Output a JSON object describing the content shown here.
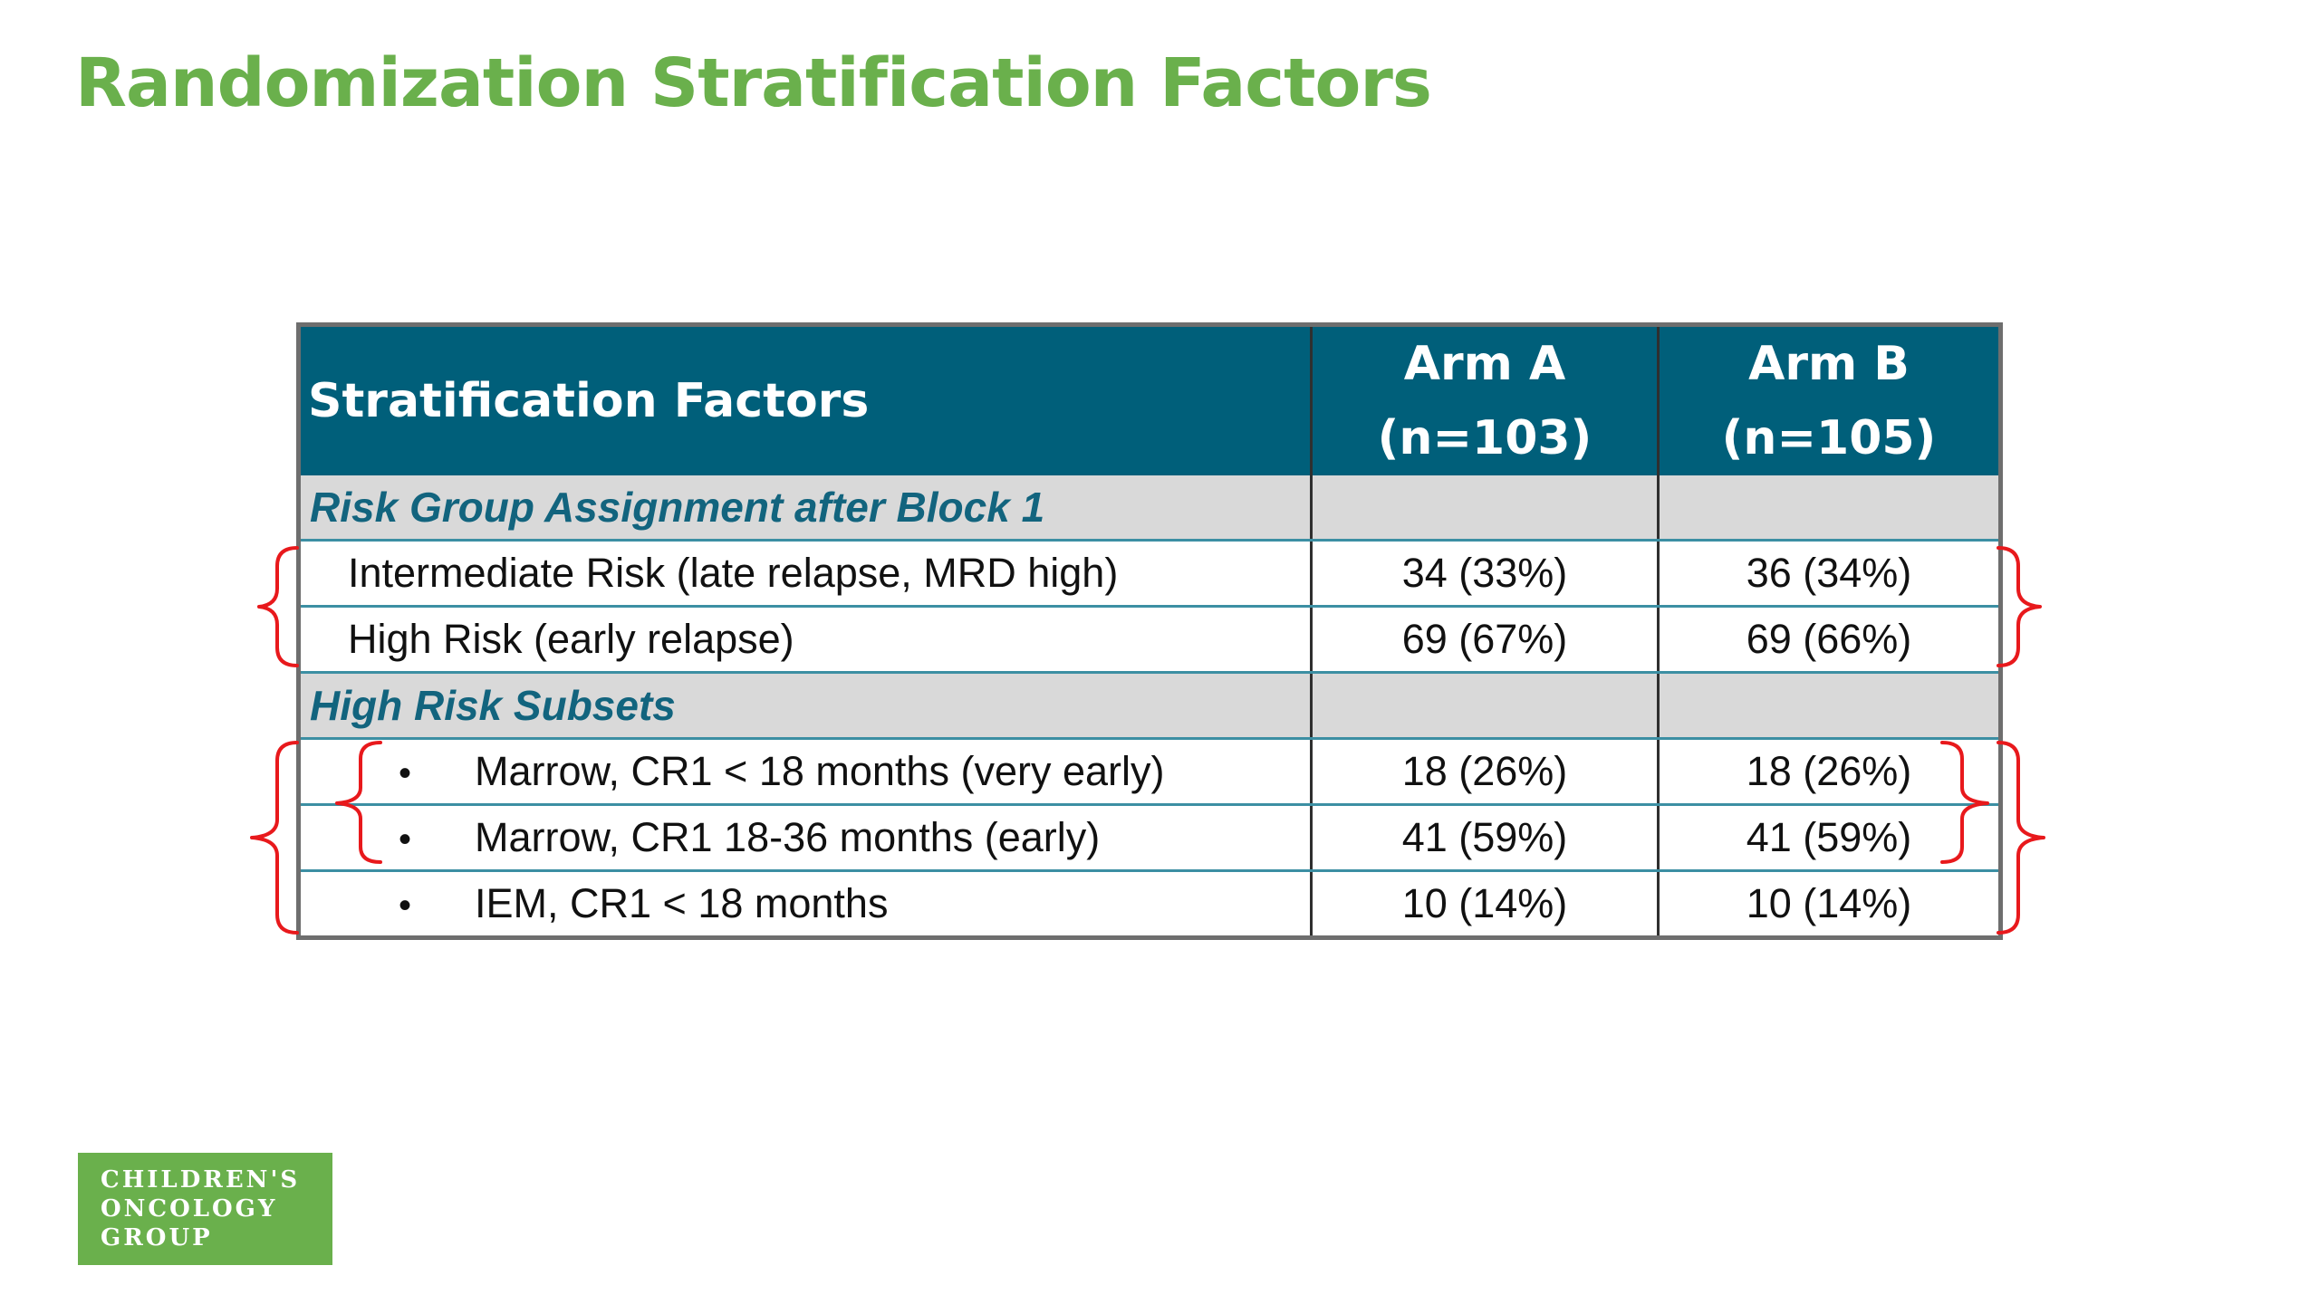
{
  "title": "Randomization Stratification Factors",
  "table": {
    "header": {
      "factor": "Stratification Factors",
      "arm_a": {
        "name": "Arm A",
        "n": "(n=103)"
      },
      "arm_b": {
        "name": "Arm B",
        "n": "(n=105)"
      }
    },
    "section1": {
      "label": "Risk Group Assignment after Block 1",
      "rows": [
        {
          "label": "Intermediate Risk (late relapse, MRD high)",
          "arm_a": "34 (33%)",
          "arm_b": "36 (34%)"
        },
        {
          "label": "High Risk (early relapse)",
          "arm_a": "69 (67%)",
          "arm_b": "69 (66%)"
        }
      ]
    },
    "section2": {
      "label": "High Risk Subsets",
      "bullet": "•",
      "rows": [
        {
          "label": "Marrow, CR1 < 18 months (very early)",
          "arm_a": "18 (26%)",
          "arm_b": "18 (26%)"
        },
        {
          "label": "Marrow, CR1 18-36 months (early)",
          "arm_a": "41 (59%)",
          "arm_b": "41 (59%)"
        },
        {
          "label": "IEM, CR1 < 18 months",
          "arm_a": "10 (14%)",
          "arm_b": "10 (14%)"
        }
      ]
    }
  },
  "logo": {
    "lines": [
      "CHILDREN'S",
      "ONCOLOGY",
      "GROUP"
    ]
  },
  "colors": {
    "title_green": "#6ab04c",
    "header_teal": "#005f7a",
    "section_text": "#12647e",
    "section_bg": "#d9d9d9",
    "bracket_red": "#e8191c"
  }
}
